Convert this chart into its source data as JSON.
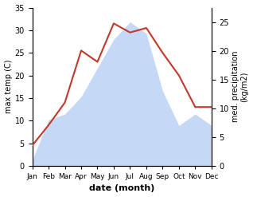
{
  "months": [
    "Jan",
    "Feb",
    "Mar",
    "Apr",
    "May",
    "Jun",
    "Jul",
    "Aug",
    "Sep",
    "Oct",
    "Nov",
    "Dec"
  ],
  "month_indices": [
    1,
    2,
    3,
    4,
    5,
    6,
    7,
    8,
    9,
    10,
    11,
    12
  ],
  "temp_max": [
    4.5,
    9.0,
    14.0,
    25.5,
    23.0,
    31.5,
    29.5,
    30.5,
    25.0,
    20.0,
    13.0,
    13.0
  ],
  "precipitation": [
    1.0,
    8.0,
    9.0,
    12.0,
    17.0,
    22.0,
    25.0,
    23.0,
    13.0,
    7.0,
    9.0,
    7.0
  ],
  "temp_ylim": [
    0,
    35
  ],
  "precip_ylim": [
    0,
    27.5
  ],
  "temp_yticks": [
    0,
    5,
    10,
    15,
    20,
    25,
    30,
    35
  ],
  "precip_yticks": [
    0,
    5,
    10,
    15,
    20,
    25
  ],
  "temp_color": "#c0392b",
  "precip_fill_color": "#c5d8f5",
  "ylabel_left": "max temp (C)",
  "ylabel_right": "med. precipitation\n(kg/m2)",
  "xlabel": "date (month)",
  "figsize": [
    3.18,
    2.47
  ],
  "dpi": 100
}
